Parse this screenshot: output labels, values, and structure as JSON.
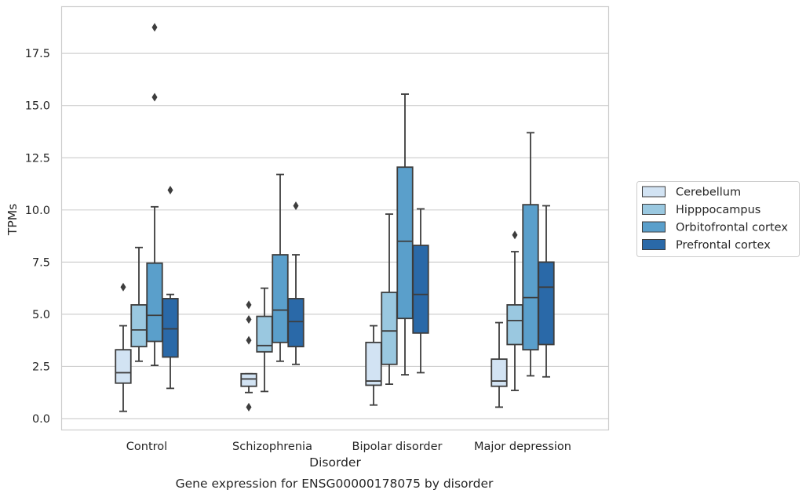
{
  "chart_data": {
    "type": "box",
    "title": "Gene expression for ENSG00000178075 by disorder",
    "xlabel": "Disorder",
    "ylabel": "TPMs",
    "ylim": [
      -0.5,
      19.7
    ],
    "yticks": [
      0.0,
      2.5,
      5.0,
      7.5,
      10.0,
      12.5,
      15.0,
      17.5
    ],
    "ytick_labels": [
      "0.0",
      "2.5",
      "5.0",
      "7.5",
      "10.0",
      "12.5",
      "15.0",
      "17.5"
    ],
    "grid": "horizontal",
    "legend_position": "right",
    "categories": [
      "Control",
      "Schizophrenia",
      "Bipolar disorder",
      "Major depression"
    ],
    "series": [
      {
        "name": "Cerebellum",
        "color": "#d2e3f3",
        "boxes": [
          {
            "whisker_low": 0.35,
            "q1": 1.7,
            "median": 2.2,
            "q3": 3.3,
            "whisker_high": 4.45,
            "outliers": [
              6.3
            ]
          },
          {
            "whisker_low": 1.25,
            "q1": 1.55,
            "median": 1.9,
            "q3": 2.15,
            "whisker_high": 2.15,
            "outliers": [
              0.55,
              3.75,
              4.75,
              5.45
            ]
          },
          {
            "whisker_low": 0.65,
            "q1": 1.6,
            "median": 1.8,
            "q3": 3.65,
            "whisker_high": 4.45,
            "outliers": []
          },
          {
            "whisker_low": 0.55,
            "q1": 1.55,
            "median": 1.8,
            "q3": 2.85,
            "whisker_high": 4.6,
            "outliers": []
          }
        ]
      },
      {
        "name": "Hipppocampus",
        "color": "#9ac8e0",
        "boxes": [
          {
            "whisker_low": 2.75,
            "q1": 3.45,
            "median": 4.25,
            "q3": 5.45,
            "whisker_high": 8.2,
            "outliers": []
          },
          {
            "whisker_low": 1.3,
            "q1": 3.2,
            "median": 3.5,
            "q3": 4.9,
            "whisker_high": 6.25,
            "outliers": []
          },
          {
            "whisker_low": 1.65,
            "q1": 2.6,
            "median": 4.2,
            "q3": 6.05,
            "whisker_high": 9.8,
            "outliers": []
          },
          {
            "whisker_low": 1.35,
            "q1": 3.55,
            "median": 4.7,
            "q3": 5.45,
            "whisker_high": 8.0,
            "outliers": [
              8.8
            ]
          }
        ]
      },
      {
        "name": "Orbitofrontal cortex",
        "color": "#5a9fcb",
        "boxes": [
          {
            "whisker_low": 2.55,
            "q1": 3.7,
            "median": 4.95,
            "q3": 7.45,
            "whisker_high": 10.15,
            "outliers": [
              15.4,
              18.75
            ]
          },
          {
            "whisker_low": 2.75,
            "q1": 3.65,
            "median": 5.2,
            "q3": 7.85,
            "whisker_high": 11.7,
            "outliers": []
          },
          {
            "whisker_low": 2.1,
            "q1": 4.8,
            "median": 8.5,
            "q3": 12.05,
            "whisker_high": 15.55,
            "outliers": []
          },
          {
            "whisker_low": 2.05,
            "q1": 3.3,
            "median": 5.8,
            "q3": 10.25,
            "whisker_high": 13.7,
            "outliers": []
          }
        ]
      },
      {
        "name": "Prefrontal cortex",
        "color": "#2a69a8",
        "boxes": [
          {
            "whisker_low": 1.45,
            "q1": 2.95,
            "median": 4.3,
            "q3": 5.75,
            "whisker_high": 5.95,
            "outliers": [
              10.95
            ]
          },
          {
            "whisker_low": 2.6,
            "q1": 3.45,
            "median": 4.65,
            "q3": 5.75,
            "whisker_high": 7.85,
            "outliers": [
              10.2
            ]
          },
          {
            "whisker_low": 2.2,
            "q1": 4.1,
            "median": 5.95,
            "q3": 8.3,
            "whisker_high": 10.05,
            "outliers": []
          },
          {
            "whisker_low": 2.0,
            "q1": 3.55,
            "median": 6.3,
            "q3": 7.5,
            "whisker_high": 10.2,
            "outliers": []
          }
        ]
      }
    ]
  }
}
